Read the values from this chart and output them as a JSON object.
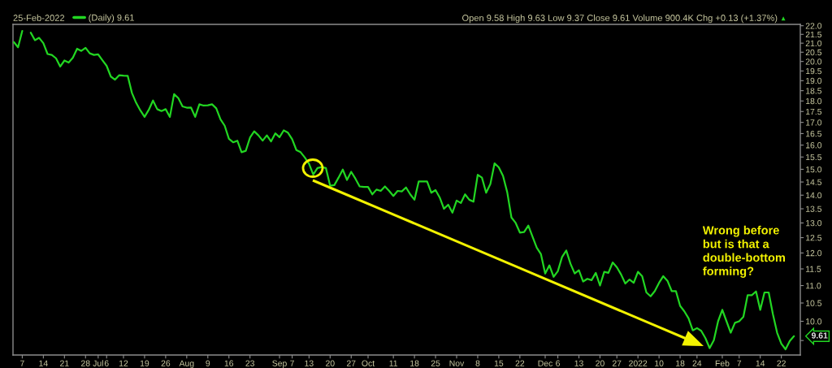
{
  "chart_data": {
    "type": "line",
    "subtitle": "25-Feb-2022",
    "categories": [
      null,
      null,
      "7",
      null,
      null,
      null,
      null,
      "14",
      null,
      null,
      null,
      null,
      "21",
      null,
      null,
      null,
      null,
      "28",
      null,
      null,
      "Jul",
      null,
      "6",
      null,
      null,
      null,
      "12",
      null,
      null,
      null,
      null,
      "19",
      null,
      null,
      null,
      null,
      "26",
      null,
      null,
      null,
      null,
      "Aug",
      null,
      null,
      null,
      null,
      "9",
      null,
      null,
      null,
      null,
      "16",
      null,
      null,
      null,
      null,
      "23",
      null,
      null,
      null,
      null,
      null,
      null,
      "Sep",
      null,
      null,
      "7",
      null,
      null,
      null,
      "13",
      null,
      null,
      null,
      null,
      "20",
      null,
      null,
      null,
      null,
      "27",
      null,
      null,
      null,
      "Oct",
      null,
      null,
      null,
      null,
      null,
      "11",
      null,
      null,
      null,
      null,
      "18",
      null,
      null,
      null,
      null,
      "25",
      null,
      null,
      null,
      null,
      "Nov",
      null,
      null,
      null,
      null,
      "8",
      null,
      null,
      null,
      null,
      "15",
      null,
      null,
      null,
      null,
      "22",
      null,
      null,
      null,
      null,
      null,
      "Dec",
      null,
      null,
      "6",
      null,
      null,
      null,
      null,
      "13",
      null,
      null,
      null,
      null,
      "20",
      null,
      null,
      null,
      "27",
      null,
      null,
      null,
      null,
      "2022",
      null,
      null,
      null,
      null,
      "10",
      null,
      null,
      null,
      null,
      "18",
      null,
      null,
      null,
      "24",
      null,
      null,
      null,
      null,
      null,
      "Feb",
      null,
      null,
      null,
      "7",
      null,
      null,
      null,
      null,
      "14",
      null,
      null,
      null,
      null,
      "22",
      null,
      null,
      null
    ],
    "series": [
      {
        "name": "(Daily) 9.61",
        "color": "#22d622",
        "values": [
          21.06,
          20.77,
          21.7,
          null,
          21.6,
          21.17,
          21.3,
          21.0,
          20.4,
          20.35,
          20.17,
          19.73,
          20.05,
          19.94,
          20.2,
          20.69,
          20.57,
          20.74,
          20.44,
          20.35,
          20.38,
          20.07,
          19.77,
          19.21,
          19.05,
          19.28,
          19.26,
          19.25,
          18.39,
          17.91,
          17.55,
          17.25,
          17.58,
          18.02,
          17.61,
          17.52,
          17.61,
          17.25,
          18.33,
          18.14,
          17.74,
          17.68,
          17.69,
          17.25,
          17.84,
          17.78,
          17.79,
          17.84,
          17.65,
          17.14,
          16.85,
          16.27,
          16.12,
          16.19,
          15.7,
          15.76,
          16.32,
          16.6,
          16.42,
          16.19,
          16.42,
          16.16,
          16.51,
          16.34,
          16.64,
          16.54,
          16.25,
          15.79,
          15.7,
          15.48,
          15.22,
          14.79,
          15.05,
          15.09,
          15.05,
          14.36,
          14.38,
          14.67,
          14.99,
          14.58,
          14.9,
          14.63,
          14.33,
          14.31,
          14.31,
          14.03,
          14.21,
          14.16,
          14.33,
          14.16,
          13.97,
          14.16,
          14.14,
          14.29,
          14.03,
          13.83,
          14.52,
          14.52,
          14.52,
          14.09,
          14.19,
          13.91,
          13.5,
          13.65,
          13.36,
          13.8,
          13.71,
          14.03,
          13.83,
          13.76,
          14.78,
          14.67,
          14.09,
          14.42,
          15.24,
          15.08,
          14.74,
          14.11,
          13.19,
          13.0,
          12.67,
          12.69,
          12.91,
          12.53,
          12.17,
          11.96,
          11.36,
          11.61,
          11.26,
          11.43,
          11.87,
          12.08,
          11.66,
          11.36,
          11.46,
          11.12,
          11.2,
          11.16,
          11.38,
          11.0,
          11.41,
          11.38,
          11.7,
          11.55,
          11.33,
          11.06,
          11.18,
          11.08,
          11.41,
          11.28,
          10.8,
          10.69,
          10.84,
          11.08,
          11.28,
          11.14,
          10.84,
          10.84,
          10.42,
          10.27,
          10.08,
          9.76,
          9.82,
          9.75,
          9.56,
          9.31,
          9.51,
          10.0,
          10.31,
          10.0,
          9.7,
          9.96,
          10.0,
          10.12,
          10.72,
          10.72,
          10.83,
          10.31,
          10.8,
          10.8,
          10.19,
          9.7,
          9.42,
          9.28,
          9.49,
          9.61
        ]
      }
    ],
    "ylim": [
      9.14,
      22.08
    ],
    "yticks": [
      {
        "value": 9.5,
        "label": null
      },
      {
        "value": 10,
        "label": "10.0"
      },
      {
        "value": 10.5,
        "label": "10.5"
      },
      {
        "value": 11,
        "label": "11.0"
      },
      {
        "value": 11.5,
        "label": "11.5"
      },
      {
        "value": 12,
        "label": "12.0"
      },
      {
        "value": 12.5,
        "label": "12.5"
      },
      {
        "value": 13,
        "label": "13.0"
      },
      {
        "value": 13.5,
        "label": "13.5"
      },
      {
        "value": 14,
        "label": "14.0"
      },
      {
        "value": 14.5,
        "label": "14.5"
      },
      {
        "value": 15,
        "label": "15.0"
      },
      {
        "value": 15.5,
        "label": "15.5"
      },
      {
        "value": 16,
        "label": "16.0"
      },
      {
        "value": 16.5,
        "label": "16.5"
      },
      {
        "value": 17,
        "label": "17.0"
      },
      {
        "value": 17.5,
        "label": "17.5"
      },
      {
        "value": 18,
        "label": "18.0"
      },
      {
        "value": 18.5,
        "label": "18.5"
      },
      {
        "value": 19,
        "label": "19.0"
      },
      {
        "value": 19.5,
        "label": "19.5"
      },
      {
        "value": 20,
        "label": "20.0"
      },
      {
        "value": 20.5,
        "label": "20.5"
      },
      {
        "value": 21,
        "label": "21.0"
      },
      {
        "value": 21.5,
        "label": "21.5"
      },
      {
        "value": 22,
        "label": "22.0"
      }
    ],
    "log": true,
    "legend": "top left",
    "line_style": "solid",
    "annotations": [
      "Open 9.58 High 9.63 Low 9.37 Close 9.61 Volume 900.4K Chg +0.13 (+1.37%)",
      "▲",
      "Wrong before\nbut is that a\ndouble-bottom\nforming?",
      "9.61"
    ]
  }
}
